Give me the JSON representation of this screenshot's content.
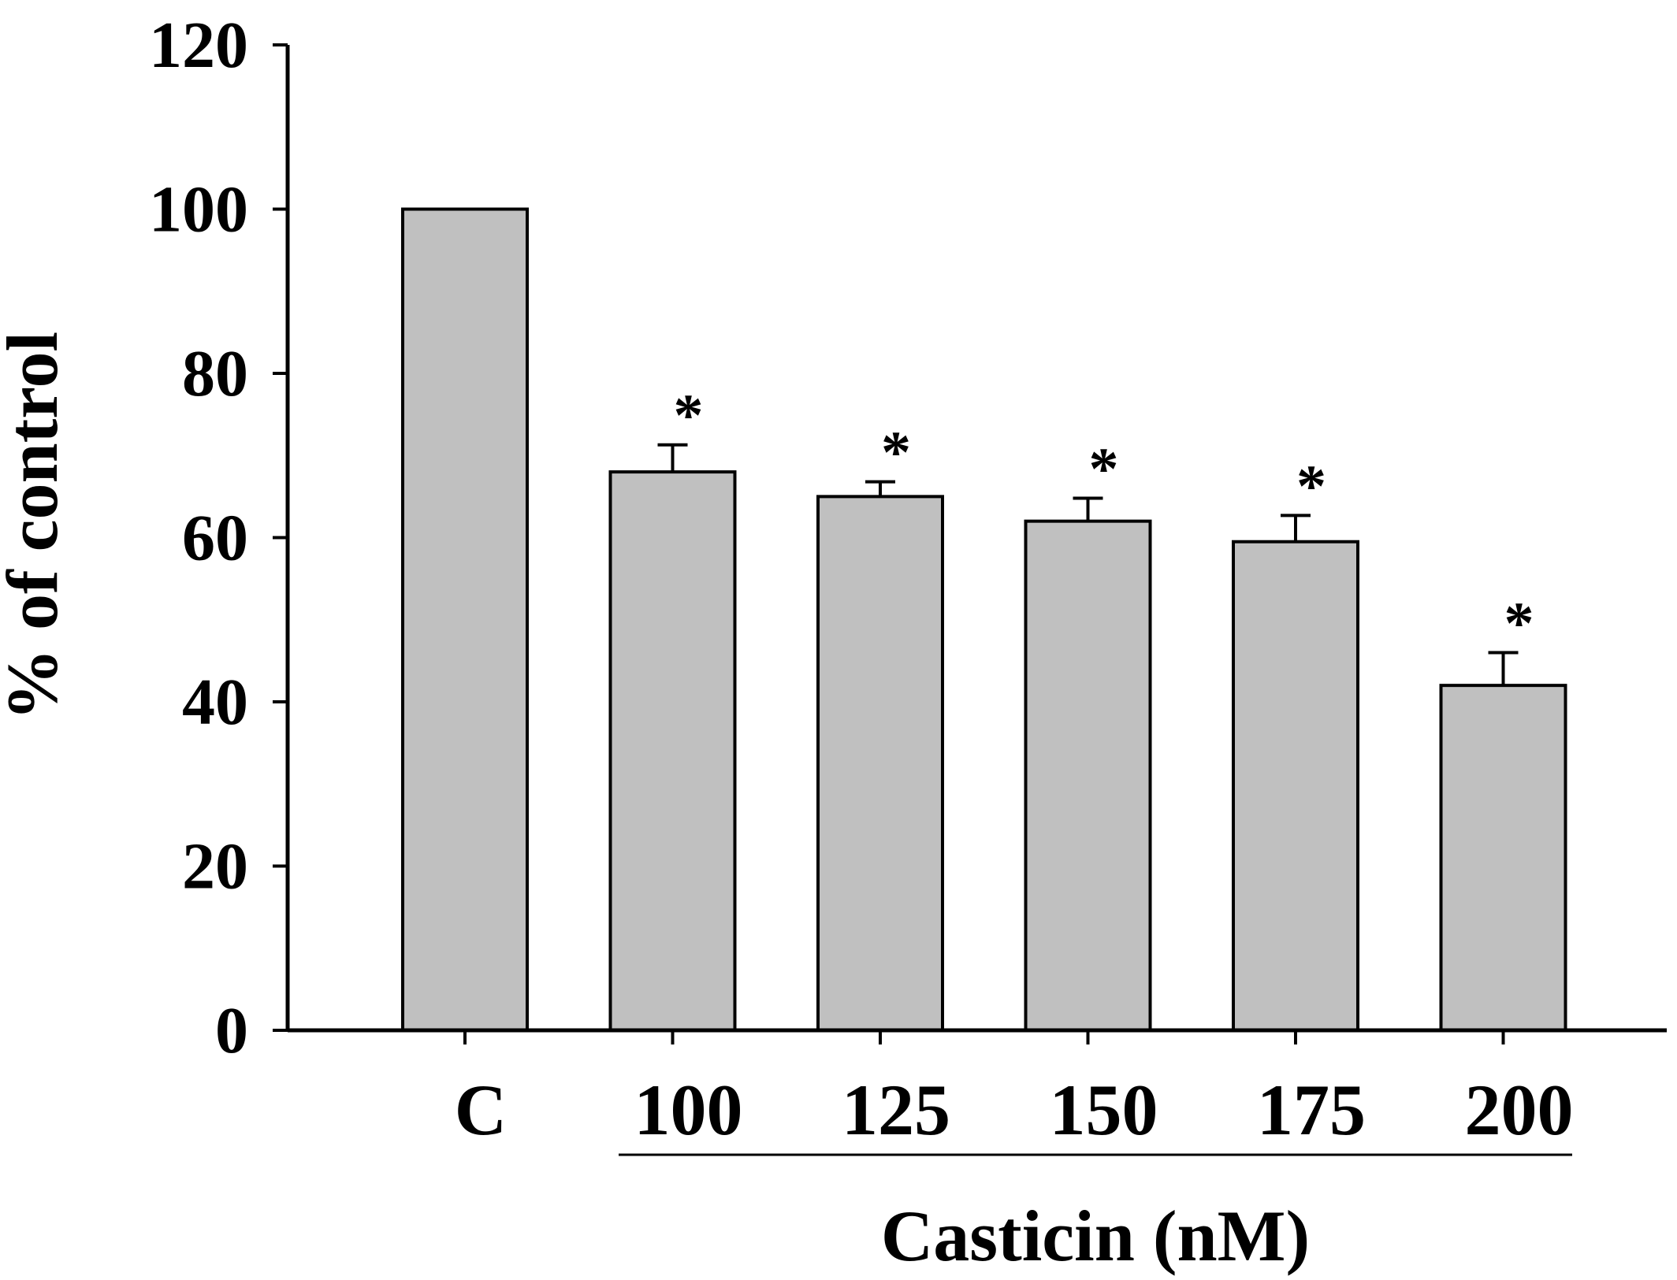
{
  "chart_data": {
    "type": "bar",
    "categories": [
      "C",
      "100",
      "125",
      "150",
      "175",
      "200"
    ],
    "series": [
      {
        "values": [
          100,
          68,
          65,
          62,
          59.5,
          42
        ],
        "errors": [
          0,
          3.3,
          1.8,
          2.8,
          3.2,
          4
        ]
      }
    ],
    "significance": [
      "",
      "*",
      "*",
      "*",
      "*",
      "*"
    ],
    "ylabel": "% of control",
    "group_label": "Casticin (nM)",
    "ylim": [
      0,
      120
    ],
    "yticks": [
      "0",
      "20",
      "40",
      "60",
      "80",
      "100",
      "120"
    ],
    "grid": false,
    "bar_color": "#c0c0c0",
    "edge_color": "#000000"
  }
}
